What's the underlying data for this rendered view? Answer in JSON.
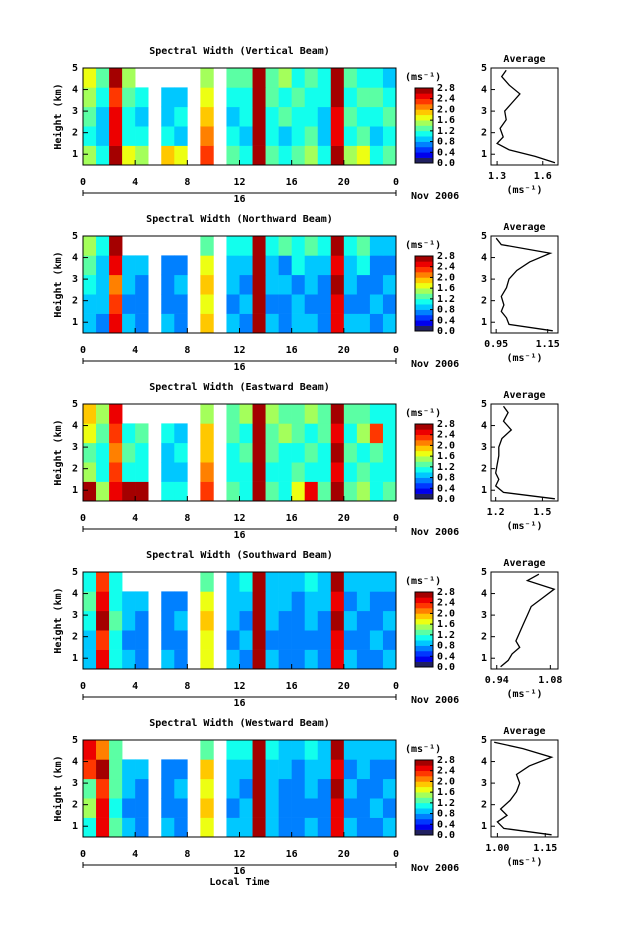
{
  "chart_data": [
    {
      "type": "heatmap",
      "title": "Spectral Width (Vertical Beam)",
      "ylabel": "Height (km)",
      "xlim": [
        0,
        24
      ],
      "xticks": [
        0,
        4,
        8,
        12,
        16,
        20,
        {
          "value": 24,
          "label": "0"
        }
      ],
      "ylim": [
        0.5,
        5
      ],
      "yticks": [
        1,
        2,
        3,
        4,
        5
      ],
      "day": "16",
      "month": "Nov 2006",
      "x_bins": [
        0,
        1,
        2,
        3,
        4,
        5,
        6,
        7,
        8,
        9,
        10,
        11,
        12,
        13,
        14,
        15,
        16,
        17,
        18,
        19,
        20,
        21,
        22,
        23,
        24
      ],
      "y_bins": [
        0.5,
        1.4,
        2.3,
        3.2,
        4.1,
        5.0
      ],
      "z": [
        [
          1.4,
          1.0,
          2.6,
          1.6,
          1.4,
          null,
          1.8,
          1.6,
          null,
          2.2,
          null,
          1.2,
          1.0,
          2.6,
          1.2,
          1.0,
          1.2,
          1.4,
          1.0,
          2.6,
          1.4,
          1.6,
          1.0,
          1.2
        ],
        [
          1.0,
          0.8,
          2.4,
          1.0,
          1.0,
          null,
          1.0,
          0.8,
          null,
          2.0,
          null,
          1.0,
          0.8,
          2.6,
          1.0,
          0.8,
          1.0,
          1.2,
          0.8,
          2.4,
          1.0,
          1.2,
          0.8,
          1.0
        ],
        [
          1.2,
          0.8,
          2.4,
          1.0,
          0.8,
          null,
          0.8,
          1.0,
          null,
          1.8,
          null,
          0.8,
          1.0,
          2.6,
          1.0,
          1.2,
          1.0,
          1.0,
          0.8,
          2.4,
          1.2,
          1.0,
          1.0,
          1.2
        ],
        [
          1.4,
          1.0,
          2.2,
          1.2,
          1.0,
          null,
          0.8,
          0.8,
          null,
          1.6,
          null,
          1.0,
          1.0,
          2.6,
          1.2,
          1.0,
          1.2,
          1.0,
          1.0,
          2.6,
          1.0,
          1.2,
          1.2,
          1.0
        ],
        [
          1.6,
          1.2,
          2.6,
          1.4,
          null,
          null,
          null,
          null,
          null,
          1.4,
          null,
          1.2,
          1.2,
          2.6,
          1.2,
          1.4,
          1.0,
          1.2,
          1.0,
          2.6,
          1.2,
          1.0,
          1.0,
          0.8
        ]
      ],
      "clim": [
        0,
        2.8
      ],
      "cticks": [
        {
          "value": 0,
          "label": "0.0"
        },
        0.4,
        0.8,
        1.2,
        1.6,
        {
          "value": 2,
          "label": "2.0"
        },
        2.4,
        2.8
      ],
      "colorbar_label": "(ms⁻¹)"
    },
    {
      "type": "line",
      "title": "Average",
      "xlabel": "(ms⁻¹)",
      "y": [
        0.6,
        0.9,
        1.2,
        1.5,
        1.8,
        2.2,
        2.6,
        3.0,
        3.4,
        3.8,
        4.2,
        4.6,
        4.9
      ],
      "values": [
        1.68,
        1.55,
        1.38,
        1.3,
        1.34,
        1.32,
        1.36,
        1.35,
        1.4,
        1.45,
        1.38,
        1.33,
        1.36
      ],
      "color": "#000000",
      "xlim": [
        1.26,
        1.7
      ],
      "xticks": [
        1.3,
        1.6
      ],
      "ylim": [
        0.5,
        5
      ],
      "yticks": [
        1,
        2,
        3,
        4,
        5
      ]
    },
    {
      "type": "heatmap",
      "title": "Spectral Width (Northward Beam)",
      "ylabel": "Height (km)",
      "xlim": [
        0,
        24
      ],
      "xticks": [
        0,
        4,
        8,
        12,
        16,
        20,
        {
          "value": 24,
          "label": "0"
        }
      ],
      "ylim": [
        0.5,
        5
      ],
      "yticks": [
        1,
        2,
        3,
        4,
        5
      ],
      "day": "16",
      "month": "Nov 2006",
      "x_bins": [
        0,
        1,
        2,
        3,
        4,
        5,
        6,
        7,
        8,
        9,
        10,
        11,
        12,
        13,
        14,
        15,
        16,
        17,
        18,
        19,
        20,
        21,
        22,
        23,
        24
      ],
      "y_bins": [
        0.5,
        1.4,
        2.3,
        3.2,
        4.1,
        5.0
      ],
      "z": [
        [
          0.8,
          0.6,
          2.4,
          0.8,
          0.6,
          null,
          0.8,
          0.6,
          null,
          1.8,
          null,
          0.8,
          0.6,
          2.6,
          0.8,
          0.6,
          0.8,
          0.8,
          0.6,
          2.4,
          0.8,
          0.8,
          0.6,
          0.8
        ],
        [
          0.8,
          0.8,
          2.2,
          0.6,
          0.6,
          null,
          0.6,
          0.6,
          null,
          1.6,
          null,
          0.6,
          0.8,
          2.6,
          0.6,
          0.6,
          0.8,
          0.6,
          0.6,
          2.4,
          0.6,
          0.6,
          0.8,
          0.6
        ],
        [
          1.0,
          0.8,
          2.0,
          0.8,
          0.6,
          null,
          0.6,
          0.8,
          null,
          1.8,
          null,
          0.8,
          0.6,
          2.6,
          0.8,
          0.8,
          0.6,
          0.8,
          0.6,
          2.6,
          0.8,
          0.6,
          0.6,
          0.8
        ],
        [
          1.2,
          0.8,
          2.4,
          0.8,
          0.8,
          null,
          0.6,
          0.6,
          null,
          1.6,
          null,
          0.8,
          0.8,
          2.6,
          0.8,
          0.6,
          1.0,
          0.8,
          0.8,
          2.4,
          0.8,
          1.0,
          0.6,
          0.6
        ],
        [
          1.4,
          1.0,
          2.6,
          null,
          null,
          null,
          null,
          null,
          null,
          1.2,
          null,
          1.0,
          1.0,
          2.6,
          1.0,
          1.2,
          1.0,
          1.2,
          1.0,
          2.6,
          1.0,
          1.2,
          0.8,
          0.8
        ]
      ],
      "clim": [
        0,
        2.8
      ],
      "cticks": [
        {
          "value": 0,
          "label": "0.0"
        },
        0.4,
        0.8,
        1.2,
        1.6,
        {
          "value": 2,
          "label": "2.0"
        },
        2.4,
        2.8
      ],
      "colorbar_label": "(ms⁻¹)"
    },
    {
      "type": "line",
      "title": "Average",
      "xlabel": "(ms⁻¹)",
      "y": [
        0.6,
        0.9,
        1.2,
        1.5,
        1.8,
        2.2,
        2.6,
        3.0,
        3.4,
        3.8,
        4.2,
        4.6,
        4.9
      ],
      "values": [
        1.17,
        1.0,
        0.99,
        0.97,
        0.98,
        0.97,
        0.99,
        1.0,
        1.03,
        1.08,
        1.16,
        0.97,
        0.95
      ],
      "color": "#000000",
      "xlim": [
        0.93,
        1.19
      ],
      "xticks": [
        0.95,
        1.15
      ],
      "ylim": [
        0.5,
        5
      ],
      "yticks": [
        1,
        2,
        3,
        4,
        5
      ]
    },
    {
      "type": "heatmap",
      "title": "Spectral Width (Eastward Beam)",
      "ylabel": "Height (km)",
      "xlim": [
        0,
        24
      ],
      "xticks": [
        0,
        4,
        8,
        12,
        16,
        20,
        {
          "value": 24,
          "label": "0"
        }
      ],
      "ylim": [
        0.5,
        5
      ],
      "yticks": [
        1,
        2,
        3,
        4,
        5
      ],
      "day": "16",
      "month": "Nov 2006",
      "x_bins": [
        0,
        1,
        2,
        3,
        4,
        5,
        6,
        7,
        8,
        9,
        10,
        11,
        12,
        13,
        14,
        15,
        16,
        17,
        18,
        19,
        20,
        21,
        22,
        23,
        24
      ],
      "y_bins": [
        0.5,
        1.4,
        2.3,
        3.2,
        4.1,
        5.0
      ],
      "z": [
        [
          2.6,
          1.4,
          2.4,
          2.6,
          2.6,
          null,
          1.0,
          1.0,
          null,
          2.2,
          null,
          1.2,
          1.0,
          2.6,
          1.2,
          1.0,
          1.6,
          2.4,
          1.2,
          2.6,
          1.2,
          1.4,
          1.0,
          1.2
        ],
        [
          1.4,
          1.0,
          2.2,
          1.0,
          1.0,
          null,
          0.8,
          0.8,
          null,
          2.0,
          null,
          1.0,
          1.0,
          2.6,
          1.0,
          1.0,
          1.2,
          1.0,
          1.0,
          2.4,
          1.0,
          1.2,
          1.0,
          1.0
        ],
        [
          1.2,
          1.0,
          2.0,
          1.2,
          1.0,
          null,
          0.8,
          1.0,
          null,
          1.8,
          null,
          1.0,
          1.2,
          2.6,
          1.2,
          1.0,
          1.0,
          1.2,
          1.0,
          2.6,
          1.2,
          1.0,
          1.2,
          1.0
        ],
        [
          1.6,
          1.2,
          2.2,
          1.0,
          1.2,
          null,
          1.0,
          0.8,
          null,
          1.8,
          null,
          1.2,
          1.0,
          2.6,
          1.2,
          1.4,
          1.2,
          1.0,
          1.2,
          2.4,
          1.0,
          1.4,
          2.2,
          1.0
        ],
        [
          1.8,
          1.4,
          2.4,
          null,
          null,
          null,
          null,
          null,
          null,
          1.4,
          null,
          1.2,
          1.4,
          2.6,
          1.4,
          1.2,
          1.2,
          1.4,
          1.2,
          2.6,
          1.2,
          1.2,
          1.0,
          1.0
        ]
      ],
      "clim": [
        0,
        2.8
      ],
      "cticks": [
        {
          "value": 0,
          "label": "0.0"
        },
        0.4,
        0.8,
        1.2,
        1.6,
        {
          "value": 2,
          "label": "2.0"
        },
        2.4,
        2.8
      ],
      "colorbar_label": "(ms⁻¹)"
    },
    {
      "type": "line",
      "title": "Average",
      "xlabel": "(ms⁻¹)",
      "y": [
        0.6,
        0.9,
        1.2,
        1.5,
        1.8,
        2.2,
        2.6,
        3.0,
        3.4,
        3.8,
        4.2,
        4.6,
        4.9
      ],
      "values": [
        1.58,
        1.25,
        1.2,
        1.22,
        1.2,
        1.21,
        1.22,
        1.22,
        1.24,
        1.3,
        1.25,
        1.28,
        1.25
      ],
      "color": "#000000",
      "xlim": [
        1.17,
        1.6
      ],
      "xticks": [
        1.2,
        1.5
      ],
      "ylim": [
        0.5,
        5
      ],
      "yticks": [
        1,
        2,
        3,
        4,
        5
      ]
    },
    {
      "type": "heatmap",
      "title": "Spectral Width (Southward Beam)",
      "ylabel": "Height (km)",
      "xlim": [
        0,
        24
      ],
      "xticks": [
        0,
        4,
        8,
        12,
        16,
        20,
        {
          "value": 24,
          "label": "0"
        }
      ],
      "ylim": [
        0.5,
        5
      ],
      "yticks": [
        1,
        2,
        3,
        4,
        5
      ],
      "day": "16",
      "month": "Nov 2006",
      "x_bins": [
        0,
        1,
        2,
        3,
        4,
        5,
        6,
        7,
        8,
        9,
        10,
        11,
        12,
        13,
        14,
        15,
        16,
        17,
        18,
        19,
        20,
        21,
        22,
        23,
        24
      ],
      "y_bins": [
        0.5,
        1.4,
        2.3,
        3.2,
        4.1,
        5.0
      ],
      "z": [
        [
          0.8,
          2.4,
          1.0,
          0.8,
          0.6,
          null,
          0.8,
          0.6,
          null,
          1.6,
          null,
          0.8,
          0.6,
          2.6,
          0.8,
          0.6,
          0.6,
          0.8,
          0.6,
          2.4,
          0.8,
          0.6,
          0.6,
          0.8
        ],
        [
          0.8,
          2.2,
          1.0,
          0.6,
          0.6,
          null,
          0.6,
          0.6,
          null,
          1.6,
          null,
          0.6,
          0.8,
          2.6,
          0.6,
          0.6,
          0.6,
          0.6,
          0.6,
          2.4,
          0.6,
          0.6,
          0.8,
          0.6
        ],
        [
          1.0,
          2.6,
          1.2,
          0.8,
          0.6,
          null,
          0.6,
          0.8,
          null,
          1.8,
          null,
          0.8,
          0.6,
          2.6,
          0.8,
          0.6,
          0.6,
          0.8,
          0.6,
          2.6,
          0.8,
          0.6,
          0.6,
          0.8
        ],
        [
          1.2,
          2.4,
          1.0,
          0.8,
          0.8,
          null,
          0.6,
          0.6,
          null,
          1.6,
          null,
          0.8,
          0.8,
          2.6,
          0.8,
          0.8,
          0.6,
          0.8,
          0.8,
          2.4,
          0.6,
          0.8,
          0.6,
          0.6
        ],
        [
          1.0,
          2.2,
          1.0,
          null,
          null,
          null,
          null,
          null,
          null,
          1.2,
          null,
          0.8,
          1.0,
          2.6,
          0.8,
          0.8,
          0.8,
          1.0,
          0.8,
          2.6,
          0.8,
          0.8,
          0.8,
          0.8
        ]
      ],
      "clim": [
        0,
        2.8
      ],
      "cticks": [
        {
          "value": 0,
          "label": "0.0"
        },
        0.4,
        0.8,
        1.2,
        1.6,
        {
          "value": 2,
          "label": "2.0"
        },
        2.4,
        2.8
      ],
      "colorbar_label": "(ms⁻¹)"
    },
    {
      "type": "line",
      "title": "Average",
      "xlabel": "(ms⁻¹)",
      "y": [
        0.6,
        0.9,
        1.2,
        1.5,
        1.8,
        2.2,
        2.6,
        3.0,
        3.4,
        3.8,
        4.2,
        4.6,
        4.9
      ],
      "values": [
        0.95,
        0.97,
        0.98,
        1.0,
        0.99,
        1.0,
        1.01,
        1.02,
        1.03,
        1.06,
        1.09,
        1.02,
        1.05
      ],
      "color": "#000000",
      "xlim": [
        0.925,
        1.1
      ],
      "xticks": [
        0.94,
        1.08
      ],
      "ylim": [
        0.5,
        5
      ],
      "yticks": [
        1,
        2,
        3,
        4,
        5
      ]
    },
    {
      "type": "heatmap",
      "title": "Spectral Width (Westward Beam)",
      "ylabel": "Height (km)",
      "xlabel": "Local Time",
      "xlim": [
        0,
        24
      ],
      "xticks": [
        0,
        4,
        8,
        12,
        16,
        20,
        {
          "value": 24,
          "label": "0"
        }
      ],
      "ylim": [
        0.5,
        5
      ],
      "yticks": [
        1,
        2,
        3,
        4,
        5
      ],
      "day": "16",
      "month": "Nov 2006",
      "x_bins": [
        0,
        1,
        2,
        3,
        4,
        5,
        6,
        7,
        8,
        9,
        10,
        11,
        12,
        13,
        14,
        15,
        16,
        17,
        18,
        19,
        20,
        21,
        22,
        23,
        24
      ],
      "y_bins": [
        0.5,
        1.4,
        2.3,
        3.2,
        4.1,
        5.0
      ],
      "z": [
        [
          1.0,
          2.4,
          1.2,
          0.8,
          0.6,
          null,
          0.8,
          0.6,
          null,
          1.6,
          null,
          0.8,
          0.8,
          2.6,
          0.8,
          0.6,
          0.6,
          0.8,
          0.6,
          2.4,
          0.8,
          0.6,
          0.6,
          0.8
        ],
        [
          1.4,
          2.4,
          1.0,
          0.6,
          0.6,
          null,
          0.6,
          0.6,
          null,
          1.8,
          null,
          0.6,
          0.8,
          2.6,
          0.8,
          0.6,
          0.6,
          0.6,
          0.6,
          2.4,
          0.6,
          0.6,
          0.8,
          0.6
        ],
        [
          1.2,
          2.2,
          1.2,
          0.8,
          0.6,
          null,
          0.6,
          0.8,
          null,
          1.6,
          null,
          0.8,
          0.6,
          2.6,
          0.8,
          0.6,
          0.6,
          0.8,
          0.6,
          2.6,
          0.8,
          0.6,
          0.6,
          0.8
        ],
        [
          2.2,
          2.6,
          1.2,
          0.8,
          0.8,
          null,
          0.6,
          0.6,
          null,
          1.8,
          null,
          0.8,
          0.8,
          2.6,
          0.8,
          0.8,
          0.6,
          0.8,
          0.8,
          2.4,
          0.6,
          0.8,
          0.6,
          0.6
        ],
        [
          2.4,
          2.0,
          1.2,
          null,
          null,
          null,
          null,
          null,
          null,
          1.2,
          null,
          1.0,
          1.0,
          2.6,
          1.0,
          0.8,
          0.8,
          1.0,
          0.8,
          2.6,
          0.8,
          0.8,
          0.8,
          0.8
        ]
      ],
      "clim": [
        0,
        2.8
      ],
      "cticks": [
        {
          "value": 0,
          "label": "0.0"
        },
        0.4,
        0.8,
        1.2,
        1.6,
        {
          "value": 2,
          "label": "2.0"
        },
        2.4,
        2.8
      ],
      "colorbar_label": "(ms⁻¹)"
    },
    {
      "type": "line",
      "title": "Average",
      "xlabel": "(ms⁻¹)",
      "y": [
        0.6,
        0.9,
        1.2,
        1.5,
        1.8,
        2.2,
        2.6,
        3.0,
        3.4,
        3.8,
        4.2,
        4.6,
        4.9
      ],
      "values": [
        1.17,
        1.02,
        1.0,
        1.03,
        1.01,
        1.04,
        1.06,
        1.07,
        1.06,
        1.1,
        1.17,
        1.08,
        0.99
      ],
      "color": "#000000",
      "xlim": [
        0.98,
        1.19
      ],
      "xticks": [
        {
          "value": 1,
          "label": "1.00"
        },
        1.15
      ],
      "ylim": [
        0.5,
        5
      ],
      "yticks": [
        1,
        2,
        3,
        4,
        5
      ]
    }
  ]
}
